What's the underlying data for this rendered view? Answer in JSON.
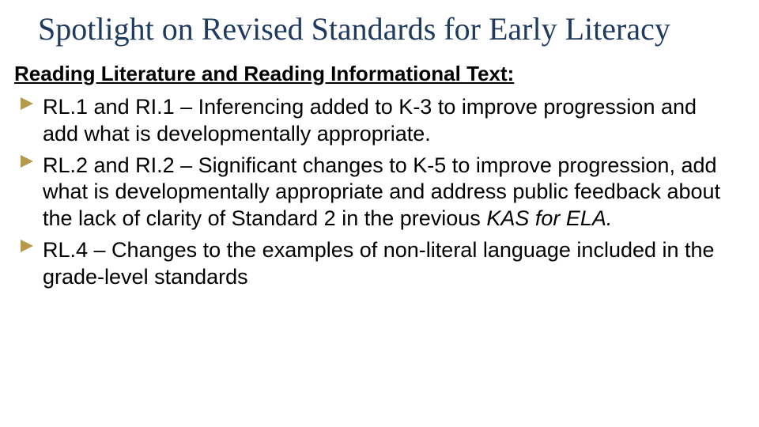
{
  "title": {
    "text": "Spotlight on Revised Standards for Early Literacy",
    "color": "#1f3a5f",
    "fontsize": 40
  },
  "section_heading": {
    "text": "Reading Literature and Reading Informational Text:",
    "color": "#000000",
    "fontsize": 26
  },
  "bullets": {
    "marker_color": "#b59a4a",
    "marker_border_left": 16,
    "text_color": "#000000",
    "fontsize": 27,
    "items": [
      {
        "plain": "RL.1 and RI.1 – Inferencing added to K-3 to improve progression and add what is developmentally appropriate."
      },
      {
        "pre": "RL.2 and RI.2 – Significant changes to K-5 to improve progression, add what is developmentally appropriate and address public feedback about the lack of clarity of Standard 2 in the previous ",
        "italic": "KAS for ELA.",
        "post": ""
      },
      {
        "plain": "RL.4 – Changes to the examples of non-literal language included in the grade-level standards"
      }
    ]
  },
  "background_color": "#ffffff"
}
